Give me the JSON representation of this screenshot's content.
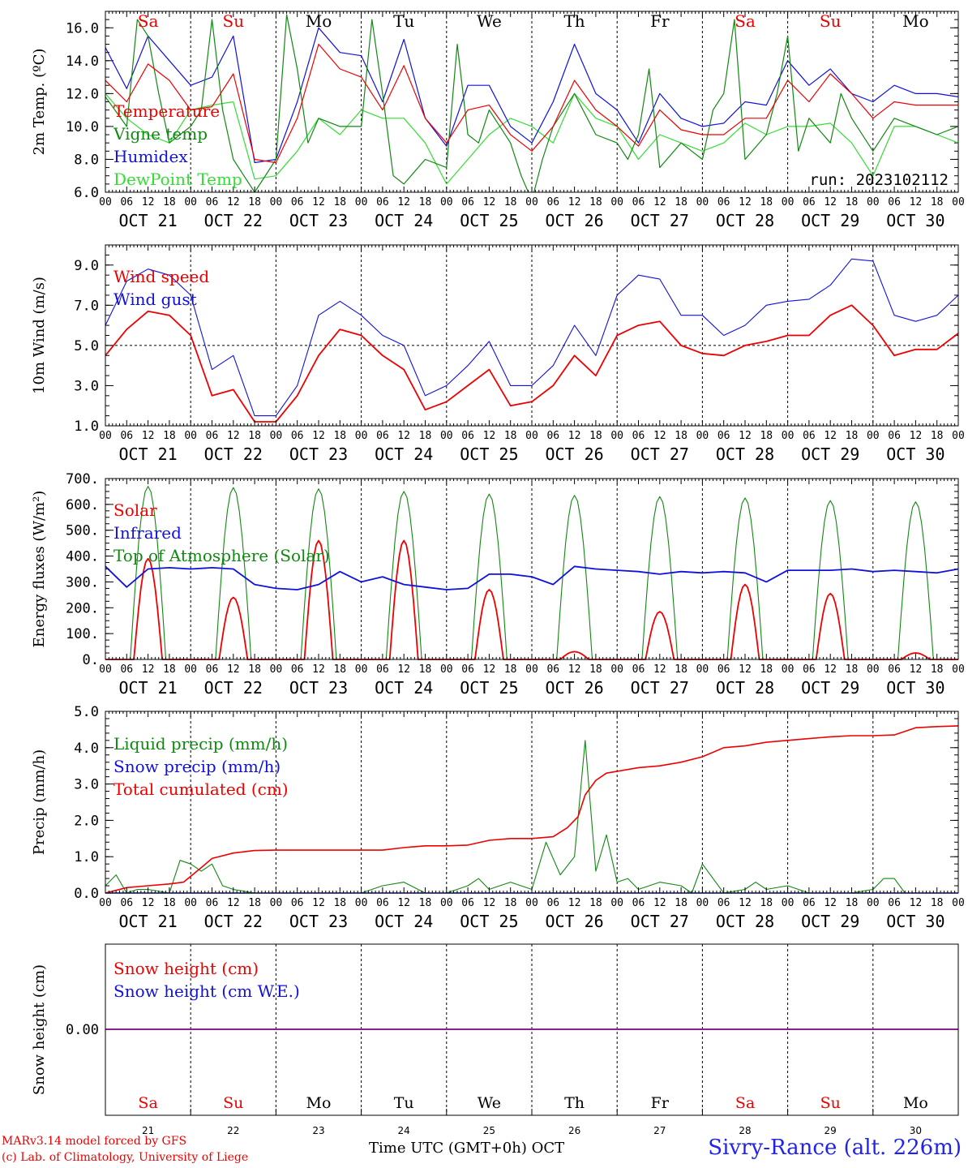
{
  "run_label": "run: 2023102112",
  "time_axis": {
    "hour_ticks": [
      "00",
      "06",
      "12",
      "18"
    ],
    "last_hour_tick": "00",
    "dates": [
      "OCT 21",
      "OCT 22",
      "OCT 23",
      "OCT 24",
      "OCT 25",
      "OCT 26",
      "OCT 27",
      "OCT 28",
      "OCT 29",
      "OCT 30"
    ],
    "weekdays": [
      "Sa",
      "Su",
      "Mo",
      "Tu",
      "We",
      "Th",
      "Fr",
      "Sa",
      "Su",
      "Mo"
    ],
    "weekend_flags": [
      true,
      true,
      false,
      false,
      false,
      false,
      false,
      true,
      true,
      false
    ],
    "day_numbers": [
      "21",
      "22",
      "23",
      "24",
      "25",
      "26",
      "27",
      "28",
      "29",
      "30"
    ],
    "month": "OCT",
    "xlabel": "Time UTC (GMT+0h)"
  },
  "footer": {
    "credit_line1": "MARv3.14 model forced by GFS",
    "credit_line2": "(c) Lab. of Climatology, University of Liege",
    "station": "Sivry-Rance (alt. 226m)"
  },
  "colors": {
    "red": "#ee0000",
    "green": "#118811",
    "blue": "#1111dd",
    "lightgreen": "#33dd33",
    "purple": "#882288",
    "weekend": "#ee0000"
  },
  "chart_data": [
    {
      "type": "line",
      "ylabel": "2m Temp. (ºC)",
      "ylim": [
        6.0,
        17.0
      ],
      "yticks": [
        "6.0",
        "8.0",
        "10.0",
        "12.0",
        "14.0",
        "16.0"
      ],
      "x_unit": "hours since Oct 21 00 UTC",
      "series": [
        {
          "name": "Temperature",
          "color": "red",
          "x": [
            0,
            6,
            12,
            18,
            24,
            30,
            36,
            42,
            48,
            54,
            60,
            66,
            72,
            78,
            84,
            90,
            96,
            102,
            108,
            114,
            120,
            126,
            132,
            138,
            144,
            150,
            156,
            162,
            168,
            174,
            180,
            186,
            192,
            198,
            204,
            210,
            216,
            222,
            228,
            234,
            240
          ],
          "y": [
            12.8,
            11.5,
            13.8,
            12.8,
            11.0,
            11.2,
            13.2,
            8.0,
            7.8,
            10.5,
            15.0,
            13.5,
            13.0,
            11.0,
            13.7,
            10.5,
            9.0,
            11.0,
            11.3,
            9.5,
            8.5,
            10.0,
            12.8,
            11.0,
            10.0,
            8.8,
            11.0,
            9.8,
            9.5,
            9.5,
            10.5,
            10.5,
            12.8,
            11.5,
            13.2,
            12.0,
            10.5,
            11.5,
            11.3,
            11.3,
            11.3
          ]
        },
        {
          "name": "Vigne temp",
          "color": "green",
          "x": [
            0,
            6,
            9,
            12,
            15,
            18,
            24,
            27,
            30,
            33,
            36,
            39,
            42,
            48,
            51,
            54,
            57,
            60,
            66,
            72,
            75,
            78,
            81,
            84,
            90,
            96,
            99,
            102,
            105,
            108,
            114,
            117,
            120,
            123,
            126,
            132,
            138,
            144,
            147,
            150,
            153,
            156,
            162,
            168,
            171,
            174,
            177,
            180,
            186,
            189,
            192,
            195,
            198,
            204,
            207,
            210,
            216,
            222,
            228,
            234,
            240
          ],
          "y": [
            11.8,
            10.0,
            16.5,
            15.5,
            12.0,
            9.0,
            10.0,
            11.0,
            16.5,
            11.0,
            8.0,
            7.0,
            6.0,
            8.0,
            16.8,
            13.5,
            9.0,
            10.5,
            10.0,
            10.0,
            16.5,
            12.0,
            7.0,
            6.5,
            8.0,
            7.5,
            15.0,
            9.5,
            9.0,
            11.0,
            9.0,
            7.0,
            5.5,
            8.0,
            10.0,
            12.0,
            9.5,
            9.0,
            8.0,
            9.5,
            13.5,
            7.5,
            9.0,
            8.0,
            11.0,
            12.0,
            16.5,
            8.0,
            9.5,
            12.0,
            15.5,
            8.5,
            10.5,
            9.0,
            12.0,
            10.5,
            8.5,
            10.5,
            10.0,
            9.5,
            10.0
          ]
        },
        {
          "name": "Humidex",
          "color": "blue",
          "x": [
            0,
            6,
            12,
            18,
            24,
            30,
            36,
            42,
            48,
            54,
            60,
            66,
            72,
            78,
            84,
            90,
            96,
            102,
            108,
            114,
            120,
            126,
            132,
            138,
            144,
            150,
            156,
            162,
            168,
            174,
            180,
            186,
            192,
            198,
            204,
            210,
            216,
            222,
            228,
            234,
            240
          ],
          "y": [
            14.8,
            12.3,
            15.5,
            14.0,
            12.5,
            13.0,
            15.5,
            7.8,
            8.0,
            11.5,
            16.0,
            14.5,
            14.3,
            11.5,
            15.3,
            10.5,
            8.8,
            12.5,
            12.5,
            10.0,
            9.0,
            11.5,
            15.0,
            12.0,
            11.0,
            9.0,
            12.0,
            10.5,
            10.0,
            10.2,
            11.5,
            11.3,
            14.0,
            12.5,
            13.5,
            12.0,
            11.5,
            12.5,
            12.0,
            12.0,
            11.8
          ]
        },
        {
          "name": "DewPoint Temp",
          "color": "lightgreen",
          "x": [
            0,
            6,
            12,
            18,
            24,
            30,
            36,
            42,
            48,
            54,
            60,
            66,
            72,
            78,
            84,
            90,
            96,
            102,
            108,
            114,
            120,
            126,
            132,
            138,
            144,
            150,
            156,
            162,
            168,
            174,
            180,
            186,
            192,
            198,
            204,
            210,
            216,
            222,
            228,
            234,
            240
          ],
          "y": [
            12.0,
            10.5,
            9.5,
            9.0,
            11.0,
            11.3,
            11.5,
            6.8,
            7.0,
            8.5,
            10.5,
            9.5,
            11.0,
            10.5,
            10.5,
            9.0,
            6.5,
            8.0,
            9.5,
            10.5,
            10.0,
            9.0,
            12.0,
            10.5,
            10.0,
            8.0,
            9.5,
            9.0,
            8.5,
            9.0,
            10.2,
            9.5,
            10.0,
            10.0,
            10.2,
            9.0,
            7.0,
            10.0,
            10.0,
            9.5,
            9.0
          ]
        }
      ]
    },
    {
      "type": "line",
      "ylabel": "10m Wind (m/s)",
      "ylim": [
        1.0,
        10.0
      ],
      "yticks": [
        "1.0",
        "3.0",
        "5.0",
        "7.0",
        "9.0"
      ],
      "reference_line": 5.0,
      "series": [
        {
          "name": "Wind speed",
          "color": "red",
          "x": [
            0,
            6,
            12,
            18,
            24,
            30,
            36,
            42,
            48,
            54,
            60,
            66,
            72,
            78,
            84,
            90,
            96,
            102,
            108,
            114,
            120,
            126,
            132,
            138,
            144,
            150,
            156,
            162,
            168,
            174,
            180,
            186,
            192,
            198,
            204,
            210,
            216,
            222,
            228,
            234,
            240
          ],
          "y": [
            4.5,
            5.8,
            6.7,
            6.5,
            5.5,
            2.5,
            2.8,
            1.2,
            1.2,
            2.5,
            4.5,
            5.8,
            5.5,
            4.5,
            3.8,
            1.8,
            2.2,
            3.0,
            3.8,
            2.0,
            2.2,
            3.0,
            4.5,
            3.5,
            5.5,
            6.0,
            6.2,
            5.0,
            4.6,
            4.5,
            5.0,
            5.2,
            5.5,
            5.5,
            6.5,
            7.0,
            6.0,
            4.5,
            4.8,
            4.8,
            5.6
          ]
        },
        {
          "name": "Wind gust",
          "color": "blue",
          "x": [
            0,
            6,
            12,
            18,
            24,
            30,
            36,
            42,
            48,
            54,
            60,
            66,
            72,
            78,
            84,
            90,
            96,
            102,
            108,
            114,
            120,
            126,
            132,
            138,
            144,
            150,
            156,
            162,
            168,
            174,
            180,
            186,
            192,
            198,
            204,
            210,
            216,
            222,
            228,
            234,
            240
          ],
          "y": [
            6.0,
            8.2,
            8.8,
            8.5,
            7.5,
            3.8,
            4.5,
            1.5,
            1.5,
            3.0,
            6.5,
            7.2,
            6.5,
            5.5,
            5.0,
            2.5,
            3.0,
            4.0,
            5.2,
            3.0,
            3.0,
            4.0,
            6.0,
            4.5,
            7.5,
            8.5,
            8.3,
            6.5,
            6.5,
            5.5,
            6.0,
            7.0,
            7.2,
            7.3,
            8.0,
            9.3,
            9.2,
            6.5,
            6.2,
            6.5,
            7.5
          ]
        }
      ]
    },
    {
      "type": "line",
      "ylabel": "Energy fluxes (W/m²)",
      "ylim": [
        0,
        700
      ],
      "yticks": [
        "0.",
        "100.",
        "200.",
        "300.",
        "400.",
        "500.",
        "600.",
        "700."
      ],
      "series": [
        {
          "name": "Solar",
          "color": "red",
          "peaks": [
            {
              "x": 12,
              "v": 390
            },
            {
              "x": 36,
              "v": 240
            },
            {
              "x": 60,
              "v": 460
            },
            {
              "x": 84,
              "v": 460
            },
            {
              "x": 108,
              "v": 270
            },
            {
              "x": 132,
              "v": 30
            },
            {
              "x": 156,
              "v": 185
            },
            {
              "x": 180,
              "v": 290
            },
            {
              "x": 204,
              "v": 255
            },
            {
              "x": 228,
              "v": 25
            }
          ]
        },
        {
          "name": "Infrared",
          "color": "blue",
          "x": [
            0,
            6,
            12,
            18,
            24,
            30,
            36,
            42,
            48,
            54,
            60,
            66,
            72,
            78,
            84,
            90,
            96,
            102,
            108,
            114,
            120,
            126,
            132,
            138,
            144,
            150,
            156,
            162,
            168,
            174,
            180,
            186,
            192,
            198,
            204,
            210,
            216,
            222,
            228,
            234,
            240
          ],
          "y": [
            360,
            280,
            350,
            355,
            350,
            355,
            350,
            290,
            275,
            270,
            290,
            340,
            300,
            320,
            290,
            280,
            270,
            275,
            330,
            330,
            320,
            290,
            360,
            350,
            345,
            340,
            330,
            340,
            335,
            340,
            335,
            300,
            345,
            345,
            345,
            350,
            340,
            345,
            340,
            335,
            350
          ]
        },
        {
          "name": "Top of Atmosphere (Solar)",
          "color": "green",
          "peaks": [
            {
              "x": 12,
              "v": 670
            },
            {
              "x": 36,
              "v": 665
            },
            {
              "x": 60,
              "v": 660
            },
            {
              "x": 84,
              "v": 650
            },
            {
              "x": 108,
              "v": 640
            },
            {
              "x": 132,
              "v": 635
            },
            {
              "x": 156,
              "v": 630
            },
            {
              "x": 180,
              "v": 625
            },
            {
              "x": 204,
              "v": 615
            },
            {
              "x": 228,
              "v": 610
            }
          ]
        }
      ]
    },
    {
      "type": "line",
      "ylabel": "Precip (mm/h)",
      "ylim": [
        0.0,
        5.0
      ],
      "yticks": [
        "0.0",
        "1.0",
        "2.0",
        "3.0",
        "4.0",
        "5.0"
      ],
      "series": [
        {
          "name": "Liquid precip (mm/h)",
          "color": "green",
          "x": [
            0,
            3,
            6,
            9,
            12,
            18,
            21,
            24,
            27,
            30,
            33,
            36,
            39,
            42,
            48,
            72,
            78,
            84,
            90,
            96,
            102,
            105,
            108,
            111,
            114,
            120,
            124,
            128,
            132,
            135,
            136,
            138,
            141,
            144,
            147,
            150,
            156,
            162,
            165,
            168,
            171,
            174,
            180,
            183,
            186,
            192,
            195,
            198,
            204,
            210,
            216,
            219,
            222,
            225,
            228,
            234,
            240
          ],
          "y": [
            0.2,
            0.5,
            0.0,
            0.1,
            0.1,
            0.0,
            0.9,
            0.8,
            0.6,
            0.8,
            0.2,
            0.1,
            0.05,
            0.0,
            0.0,
            0.0,
            0.2,
            0.3,
            0.0,
            0.0,
            0.2,
            0.4,
            0.1,
            0.2,
            0.3,
            0.1,
            1.4,
            0.5,
            1.0,
            4.2,
            3.0,
            0.6,
            1.6,
            0.3,
            0.4,
            0.1,
            0.3,
            0.2,
            0.0,
            0.8,
            0.4,
            0.0,
            0.1,
            0.3,
            0.1,
            0.2,
            0.1,
            0.0,
            0.0,
            0.0,
            0.1,
            0.4,
            0.4,
            0.0,
            0.0,
            0.0,
            0.0
          ]
        },
        {
          "name": "Snow precip (mm/h)",
          "color": "blue",
          "x": [
            0,
            240
          ],
          "y": [
            0.0,
            0.0
          ]
        },
        {
          "name": "Total cumulated (cm)",
          "color": "red",
          "x": [
            0,
            6,
            12,
            18,
            22,
            27,
            30,
            36,
            42,
            48,
            72,
            78,
            84,
            90,
            96,
            102,
            108,
            114,
            120,
            126,
            130,
            133,
            135,
            138,
            141,
            144,
            150,
            156,
            162,
            168,
            174,
            180,
            186,
            192,
            198,
            204,
            210,
            216,
            222,
            228,
            234,
            240
          ],
          "y": [
            0.0,
            0.15,
            0.2,
            0.25,
            0.3,
            0.7,
            0.95,
            1.1,
            1.17,
            1.18,
            1.18,
            1.18,
            1.25,
            1.3,
            1.3,
            1.32,
            1.45,
            1.5,
            1.5,
            1.55,
            1.8,
            2.1,
            2.7,
            3.1,
            3.3,
            3.35,
            3.45,
            3.5,
            3.6,
            3.75,
            4.0,
            4.05,
            4.15,
            4.2,
            4.25,
            4.3,
            4.33,
            4.33,
            4.35,
            4.55,
            4.58,
            4.6
          ]
        }
      ]
    },
    {
      "type": "line",
      "ylabel": "Snow height (cm)",
      "ytick": "0.00",
      "series": [
        {
          "name": "Snow height (cm)",
          "color": "red",
          "x": [
            0,
            240
          ],
          "y": [
            0.0,
            0.0
          ]
        },
        {
          "name": "Snow height (cm W.E.)",
          "color": "blue",
          "x": [
            0,
            240
          ],
          "y": [
            0.0,
            0.0
          ]
        }
      ]
    }
  ]
}
